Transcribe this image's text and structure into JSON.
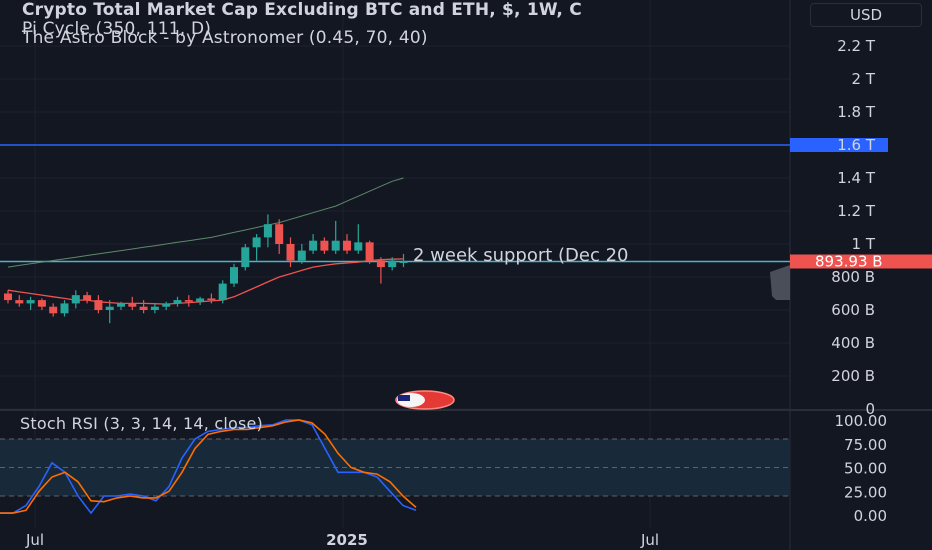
{
  "header": {
    "title": "Crypto Total Market Cap Excluding BTC and ETH, $, 1W, C",
    "indicator_1": "Pi Cycle (350, 111, D)",
    "indicator_2": "The Astro Block - by Astronomer (0.45, 70, 40)"
  },
  "currency_button": "USD",
  "price_axis": {
    "ticks": [
      "2.2 T",
      "2 T",
      "1.8 T",
      "1.6 T",
      "1.4 T",
      "1.2 T",
      "1 T",
      "800 B",
      "600 B",
      "400 B",
      "200 B",
      "0"
    ],
    "highlight_level": "1.6 T",
    "current_price": "893.93 B"
  },
  "time_axis": {
    "labels": [
      "Jul",
      "2025",
      "Jul"
    ]
  },
  "annotation": "2 week support (Dec 20",
  "stoch_rsi": {
    "title": "Stoch RSI (3, 3, 14, 14, close)",
    "ticks": [
      "100.00",
      "75.00",
      "50.00",
      "25.00",
      "0.00"
    ]
  },
  "colors": {
    "background": "#131722",
    "up": "#26a69a",
    "down": "#ef5350",
    "level_line": "#2962ff",
    "support_line": "#4fb3bf",
    "k_line": "#2962ff",
    "d_line": "#ff6d00"
  },
  "chart_data": [
    {
      "type": "candlestick",
      "title": "Crypto Total Market Cap Excluding BTC and ETH, $, 1W",
      "y_unit": "USD",
      "ylim": [
        0,
        2400000000000
      ],
      "candles": [
        {
          "o": 700,
          "h": 720,
          "l": 640,
          "c": 660
        },
        {
          "o": 660,
          "h": 690,
          "l": 620,
          "c": 640
        },
        {
          "o": 640,
          "h": 680,
          "l": 600,
          "c": 660
        },
        {
          "o": 660,
          "h": 670,
          "l": 600,
          "c": 620
        },
        {
          "o": 620,
          "h": 640,
          "l": 560,
          "c": 580
        },
        {
          "o": 580,
          "h": 660,
          "l": 560,
          "c": 640
        },
        {
          "o": 640,
          "h": 720,
          "l": 610,
          "c": 690
        },
        {
          "o": 690,
          "h": 710,
          "l": 640,
          "c": 660
        },
        {
          "o": 660,
          "h": 690,
          "l": 580,
          "c": 600
        },
        {
          "o": 600,
          "h": 660,
          "l": 520,
          "c": 620
        },
        {
          "o": 620,
          "h": 650,
          "l": 600,
          "c": 640
        },
        {
          "o": 640,
          "h": 680,
          "l": 600,
          "c": 620
        },
        {
          "o": 620,
          "h": 660,
          "l": 580,
          "c": 600
        },
        {
          "o": 600,
          "h": 640,
          "l": 580,
          "c": 620
        },
        {
          "o": 620,
          "h": 650,
          "l": 600,
          "c": 640
        },
        {
          "o": 640,
          "h": 680,
          "l": 620,
          "c": 660
        },
        {
          "o": 660,
          "h": 690,
          "l": 620,
          "c": 650
        },
        {
          "o": 650,
          "h": 680,
          "l": 630,
          "c": 670
        },
        {
          "o": 670,
          "h": 700,
          "l": 640,
          "c": 660
        },
        {
          "o": 660,
          "h": 780,
          "l": 640,
          "c": 760
        },
        {
          "o": 760,
          "h": 880,
          "l": 740,
          "c": 860
        },
        {
          "o": 860,
          "h": 1000,
          "l": 840,
          "c": 980
        },
        {
          "o": 980,
          "h": 1060,
          "l": 900,
          "c": 1040
        },
        {
          "o": 1040,
          "h": 1180,
          "l": 980,
          "c": 1120
        },
        {
          "o": 1120,
          "h": 1150,
          "l": 940,
          "c": 1000
        },
        {
          "o": 1000,
          "h": 1040,
          "l": 860,
          "c": 900
        },
        {
          "o": 900,
          "h": 1000,
          "l": 880,
          "c": 960
        },
        {
          "o": 960,
          "h": 1060,
          "l": 940,
          "c": 1020
        },
        {
          "o": 1020,
          "h": 1040,
          "l": 940,
          "c": 960
        },
        {
          "o": 960,
          "h": 1140,
          "l": 940,
          "c": 1020
        },
        {
          "o": 1020,
          "h": 1060,
          "l": 940,
          "c": 960
        },
        {
          "o": 960,
          "h": 1120,
          "l": 940,
          "c": 1010
        },
        {
          "o": 1010,
          "h": 1020,
          "l": 880,
          "c": 900
        },
        {
          "o": 900,
          "h": 920,
          "l": 760,
          "c": 860
        },
        {
          "o": 860,
          "h": 920,
          "l": 840,
          "c": 900
        },
        {
          "o": 890,
          "h": 940,
          "l": 860,
          "c": 894
        }
      ],
      "candle_values_unit": "B",
      "pi_cycle_long": [
        860,
        870,
        880,
        890,
        900,
        910,
        920,
        930,
        940,
        950,
        960,
        970,
        980,
        990,
        1000,
        1010,
        1020,
        1030,
        1040,
        1055,
        1070,
        1085,
        1100,
        1115,
        1130,
        1150,
        1170,
        1190,
        1210,
        1230,
        1260,
        1290,
        1320,
        1350,
        1380,
        1400
      ],
      "pi_cycle_short": [
        720,
        710,
        700,
        690,
        680,
        670,
        660,
        660,
        650,
        645,
        640,
        640,
        640,
        638,
        636,
        640,
        645,
        650,
        655,
        660,
        680,
        710,
        740,
        770,
        800,
        820,
        840,
        860,
        870,
        880,
        885,
        890,
        900,
        905,
        908,
        910
      ]
    },
    {
      "type": "line",
      "title": "Stoch RSI (3, 3, 14, 14, close)",
      "ylim": [
        0,
        100
      ],
      "series": [
        {
          "name": "K",
          "values": [
            2,
            2,
            10,
            30,
            55,
            45,
            20,
            2,
            20,
            20,
            22,
            20,
            15,
            30,
            60,
            80,
            88,
            90,
            92,
            92,
            94,
            95,
            100,
            100,
            95,
            70,
            45,
            45,
            45,
            40,
            25,
            10,
            5
          ]
        },
        {
          "name": "D",
          "values": [
            2,
            2,
            5,
            25,
            40,
            45,
            35,
            15,
            14,
            18,
            20,
            18,
            18,
            25,
            45,
            70,
            85,
            88,
            90,
            90,
            92,
            94,
            98,
            100,
            97,
            85,
            65,
            50,
            45,
            43,
            35,
            20,
            8
          ]
        }
      ]
    }
  ]
}
